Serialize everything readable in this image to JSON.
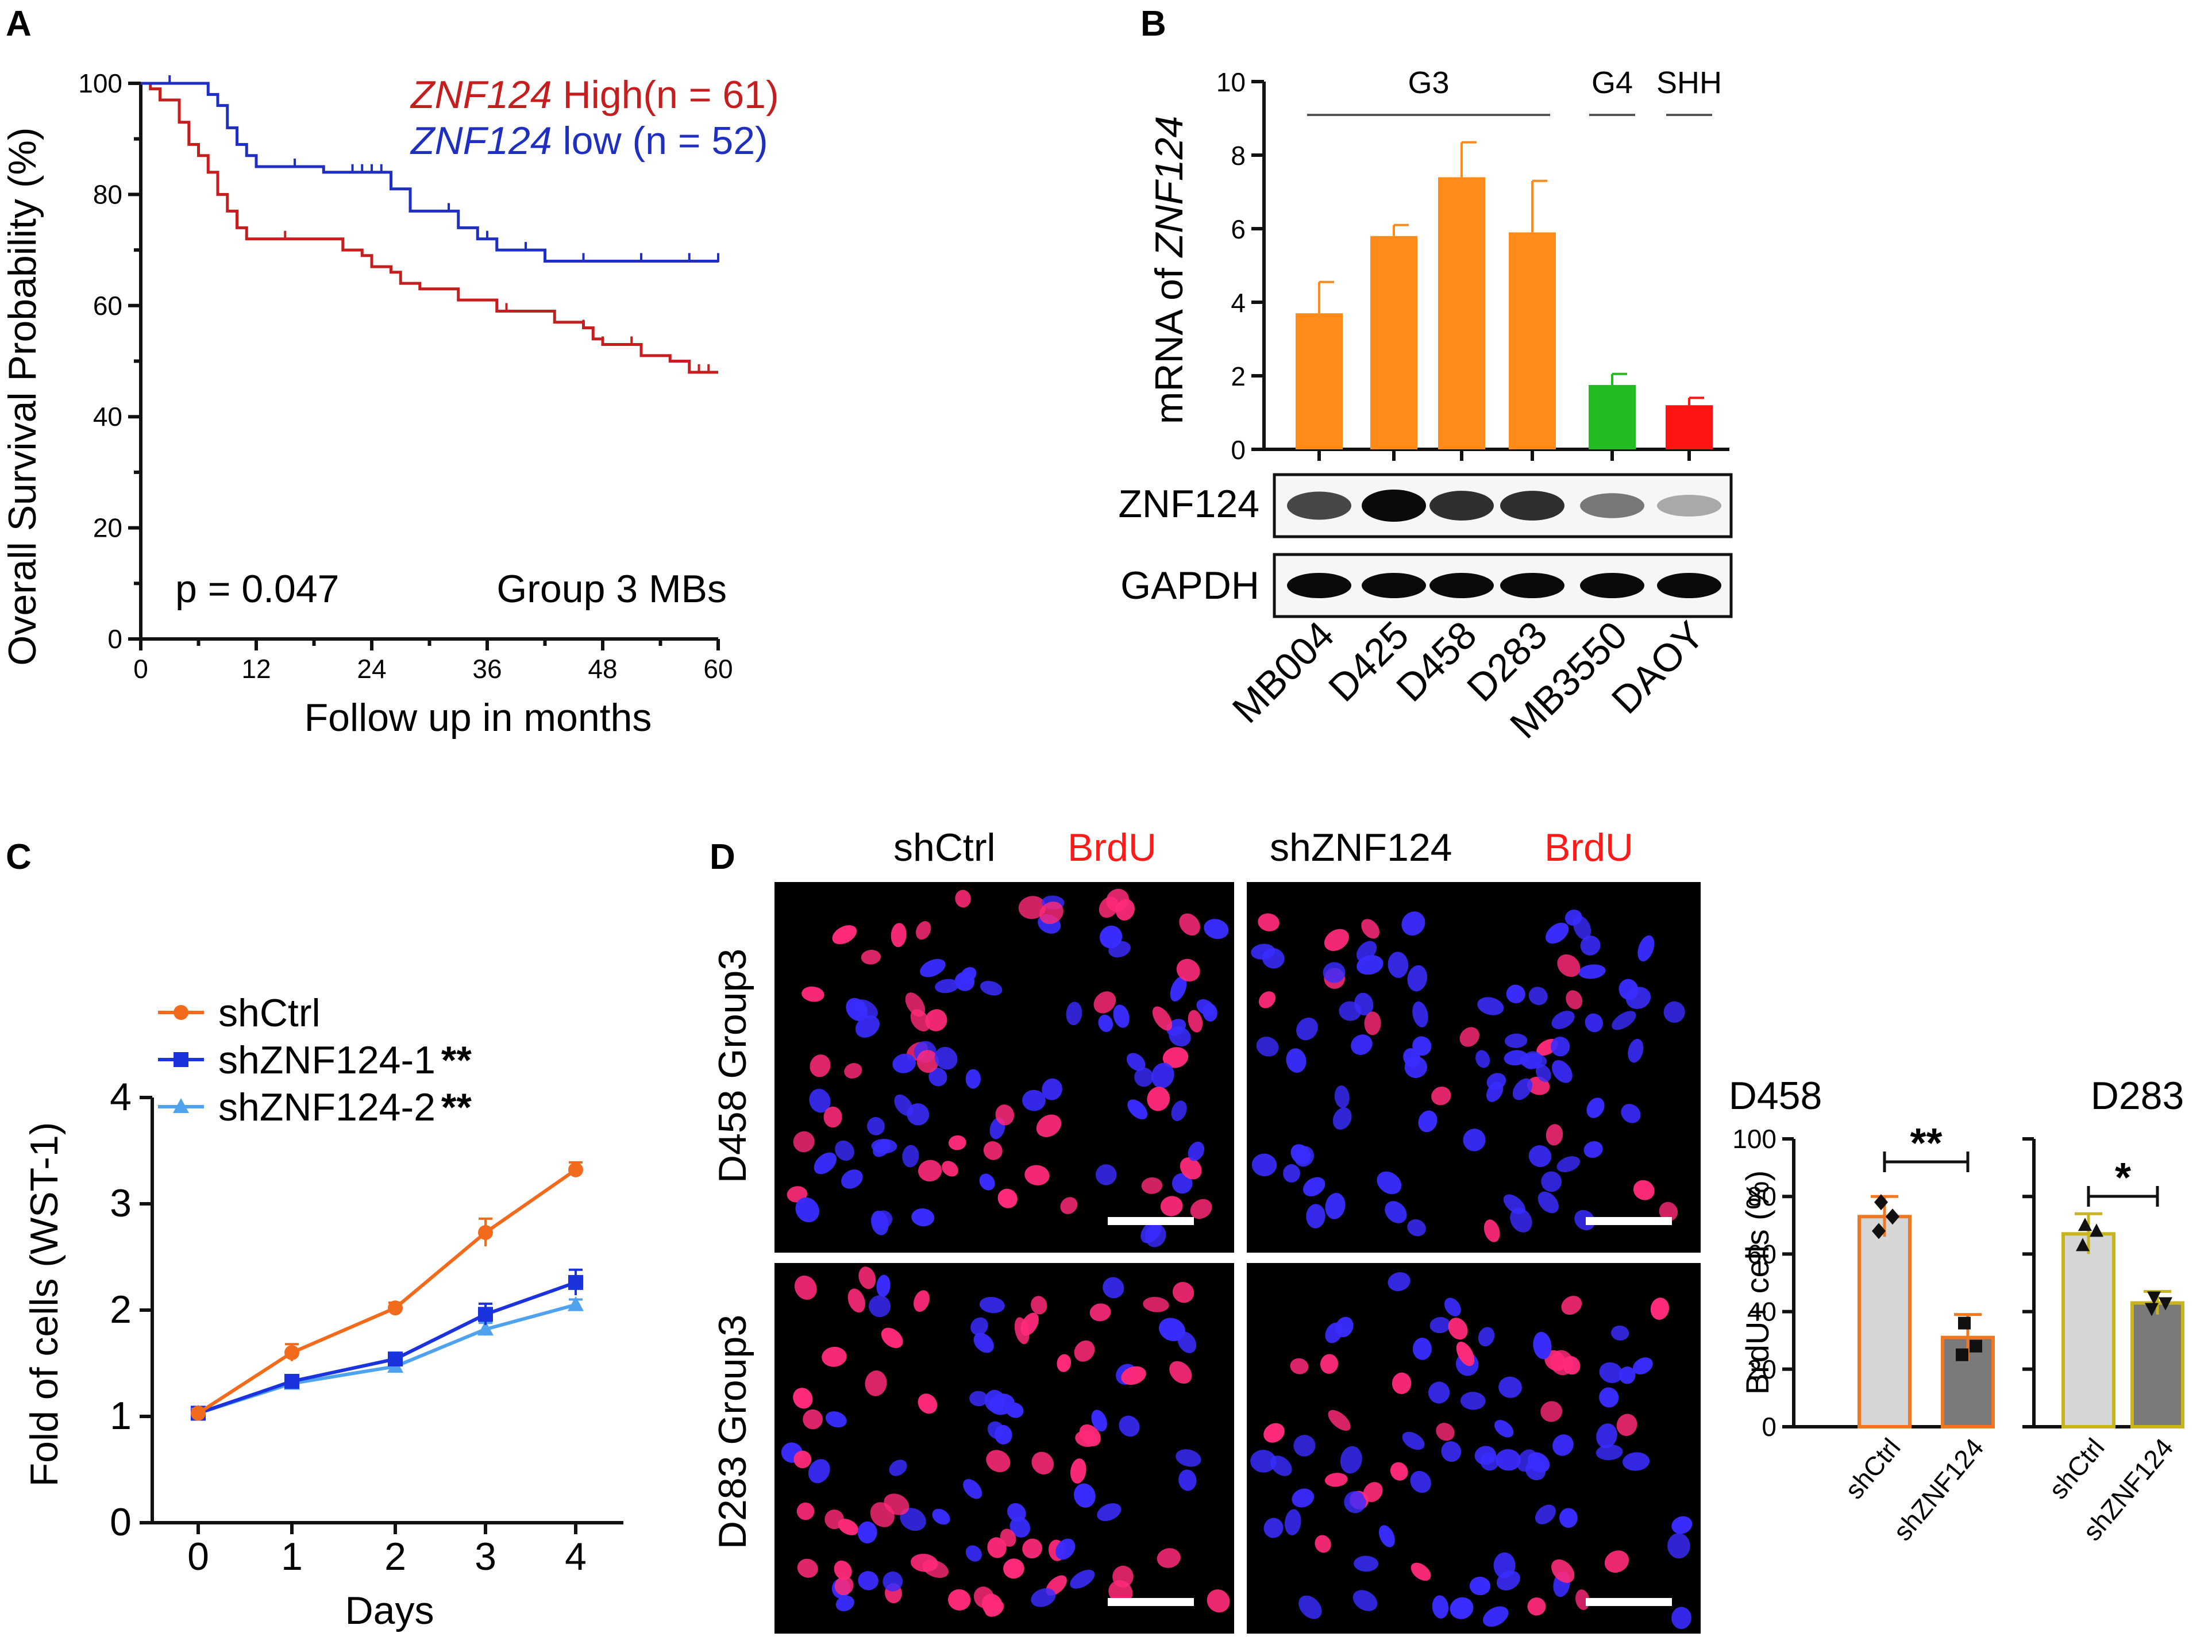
{
  "panels": {
    "A": {
      "letter": "A",
      "chart_data": {
        "type": "line",
        "subtype": "kaplan-meier",
        "xlabel": "Follow up in months",
        "ylabel": "Overall Survival Probability (%)",
        "xlim": [
          0,
          60
        ],
        "ylim": [
          0,
          100
        ],
        "xticks": [
          "0",
          "12",
          "24",
          "36",
          "48",
          "60"
        ],
        "yticks": [
          "0",
          "20",
          "40",
          "60",
          "80",
          "100"
        ],
        "series": [
          {
            "name": "ZNF124",
            "suffix": " High(n = 61)",
            "color": "#c41e1e",
            "steps": [
              [
                0,
                100
              ],
              [
                1,
                99
              ],
              [
                2,
                97
              ],
              [
                4,
                93
              ],
              [
                5,
                89
              ],
              [
                6,
                87
              ],
              [
                7,
                84
              ],
              [
                8,
                80
              ],
              [
                9,
                77
              ],
              [
                10,
                74
              ],
              [
                11,
                72
              ],
              [
                15,
                72
              ],
              [
                19,
                72
              ],
              [
                21,
                70
              ],
              [
                23,
                69
              ],
              [
                24,
                67
              ],
              [
                26,
                66
              ],
              [
                27,
                64
              ],
              [
                29,
                63
              ],
              [
                32,
                63
              ],
              [
                33,
                61
              ],
              [
                36,
                61
              ],
              [
                37,
                59
              ],
              [
                38,
                59
              ],
              [
                42,
                59
              ],
              [
                43,
                57
              ],
              [
                46,
                56
              ],
              [
                47,
                54
              ],
              [
                48,
                53
              ],
              [
                51,
                53
              ],
              [
                52,
                51
              ],
              [
                54,
                51
              ],
              [
                55,
                50
              ],
              [
                57,
                48
              ],
              [
                60,
                48
              ]
            ],
            "censor": [
              [
                15,
                72
              ],
              [
                24,
                67
              ],
              [
                38,
                59
              ],
              [
                46,
                56
              ],
              [
                47,
                54
              ],
              [
                48,
                53
              ],
              [
                51,
                53
              ],
              [
                52,
                51
              ],
              [
                58,
                48
              ],
              [
                59,
                48
              ]
            ]
          },
          {
            "name": "ZNF124",
            "suffix": " low (n = 52)",
            "color": "#1f2fbf",
            "steps": [
              [
                0,
                100
              ],
              [
                3,
                100
              ],
              [
                7,
                98
              ],
              [
                8,
                96
              ],
              [
                9,
                92
              ],
              [
                10,
                89
              ],
              [
                11,
                87
              ],
              [
                12,
                85
              ],
              [
                13,
                85
              ],
              [
                17,
                85
              ],
              [
                19,
                84
              ],
              [
                25,
                84
              ],
              [
                26,
                81
              ],
              [
                28,
                77
              ],
              [
                32,
                77
              ],
              [
                33,
                74
              ],
              [
                35,
                72
              ],
              [
                36,
                72
              ],
              [
                37,
                70
              ],
              [
                41,
                70
              ],
              [
                42,
                68
              ],
              [
                50,
                68
              ],
              [
                60,
                68
              ]
            ],
            "censor": [
              [
                3,
                100
              ],
              [
                16,
                85
              ],
              [
                22,
                84
              ],
              [
                23,
                84
              ],
              [
                24,
                84
              ],
              [
                25,
                84
              ],
              [
                26,
                81
              ],
              [
                32,
                77
              ],
              [
                33,
                74
              ],
              [
                36,
                72
              ],
              [
                40,
                70
              ],
              [
                46,
                68
              ],
              [
                52,
                68
              ],
              [
                57,
                68
              ],
              [
                60,
                68
              ]
            ]
          }
        ],
        "annotations": [
          "p = 0.047",
          "Group 3 MBs"
        ]
      }
    },
    "B": {
      "letter": "B",
      "chart_data": {
        "type": "bar",
        "ylabel_prefix": "mRNA of ",
        "ylabel_gene": "ZNF124",
        "ylim": [
          0,
          10
        ],
        "yticks": [
          "0",
          "2",
          "4",
          "6",
          "8",
          "10"
        ],
        "categories": [
          "MB004",
          "D425",
          "D458",
          "D283",
          "MB3550",
          "DAOY"
        ],
        "values": [
          3.7,
          5.8,
          7.4,
          5.9,
          1.75,
          1.2
        ],
        "errors": [
          0.85,
          0.3,
          0.95,
          1.4,
          0.3,
          0.2
        ],
        "colors": [
          "#ff8c1a",
          "#ff8c1a",
          "#ff8c1a",
          "#ff8c1a",
          "#22bb22",
          "#ff1414"
        ],
        "groups": [
          {
            "label": "G3",
            "from": 0,
            "to": 3
          },
          {
            "label": "G4",
            "from": 4,
            "to": 4
          },
          {
            "label": "SHH",
            "from": 5,
            "to": 5
          }
        ]
      },
      "blots": {
        "rows": [
          "ZNF124",
          "GAPDH"
        ],
        "intensity": [
          [
            0.75,
            1.0,
            0.85,
            0.85,
            0.55,
            0.35
          ],
          [
            1,
            1,
            1,
            1,
            1,
            1
          ]
        ]
      }
    },
    "C": {
      "letter": "C",
      "chart_data": {
        "type": "line",
        "xlabel": "Days",
        "ylabel": "Fold of cells (WST-1)",
        "x": [
          0,
          1,
          2,
          3,
          4
        ],
        "xticks": [
          "0",
          "1",
          "2",
          "3",
          "4"
        ],
        "yticks": [
          "0",
          "1",
          "2",
          "3",
          "4"
        ],
        "ylim": [
          0,
          4
        ],
        "series": [
          {
            "name": "shCtrl",
            "sig": "",
            "color": "#f26a1b",
            "marker": "circle",
            "values": [
              1.03,
              1.6,
              2.02,
              2.73,
              3.32
            ],
            "errors": [
              0.04,
              0.08,
              0.05,
              0.13,
              0.07
            ]
          },
          {
            "name": "shZNF124-1",
            "sig": "**",
            "color": "#1a33dd",
            "marker": "square",
            "values": [
              1.03,
              1.33,
              1.54,
              1.96,
              2.26
            ],
            "errors": [
              0.04,
              0.05,
              0.05,
              0.1,
              0.12
            ]
          },
          {
            "name": "shZNF124-2",
            "sig": "**",
            "color": "#4fa3ee",
            "marker": "triangle",
            "values": [
              1.03,
              1.31,
              1.47,
              1.82,
              2.05
            ],
            "errors": [
              0.04,
              0.05,
              0.04,
              0.06,
              0.05
            ]
          }
        ]
      }
    },
    "D": {
      "letter": "D",
      "columns": [
        {
          "name": "shCtrl",
          "stain": "BrdU"
        },
        {
          "name": "shZNF124",
          "stain": "BrdU"
        }
      ],
      "rows": [
        "D458 Group3",
        "D283 Group3"
      ],
      "bar_charts": [
        {
          "type": "bar",
          "title": "D458",
          "ylabel": "BrdU+ cells (%)",
          "ylim": [
            0,
            100
          ],
          "yticks": [
            "0",
            "20",
            "40",
            "60",
            "80",
            "100"
          ],
          "categories": [
            "shCtrl",
            "shZNF124"
          ],
          "values": [
            73,
            31
          ],
          "errors": [
            7,
            8
          ],
          "points": [
            [
              78,
              73,
              68
            ],
            [
              36,
              28,
              25
            ]
          ],
          "point_markers": [
            "diamond",
            "square"
          ],
          "fills": [
            "#d6d6d6",
            "#7a7a7a"
          ],
          "edge": "#f07820",
          "significance": "**"
        },
        {
          "type": "bar",
          "title": "D283",
          "ylim": [
            0,
            100
          ],
          "categories": [
            "shCtrl",
            "shZNF124"
          ],
          "values": [
            67,
            43
          ],
          "errors": [
            7,
            4
          ],
          "points": [
            [
              70,
              68,
              63
            ],
            [
              45,
              43,
              41
            ]
          ],
          "point_markers": [
            "triangle",
            "invtriangle"
          ],
          "fills": [
            "#d6d6d6",
            "#7a7a7a"
          ],
          "edge": "#c8b420",
          "significance": "*"
        }
      ]
    }
  },
  "palette": {
    "nucleus_blue": "#3a2cff",
    "brdu_red": "#ff2a7a",
    "label_red": "#ff1a1a"
  }
}
